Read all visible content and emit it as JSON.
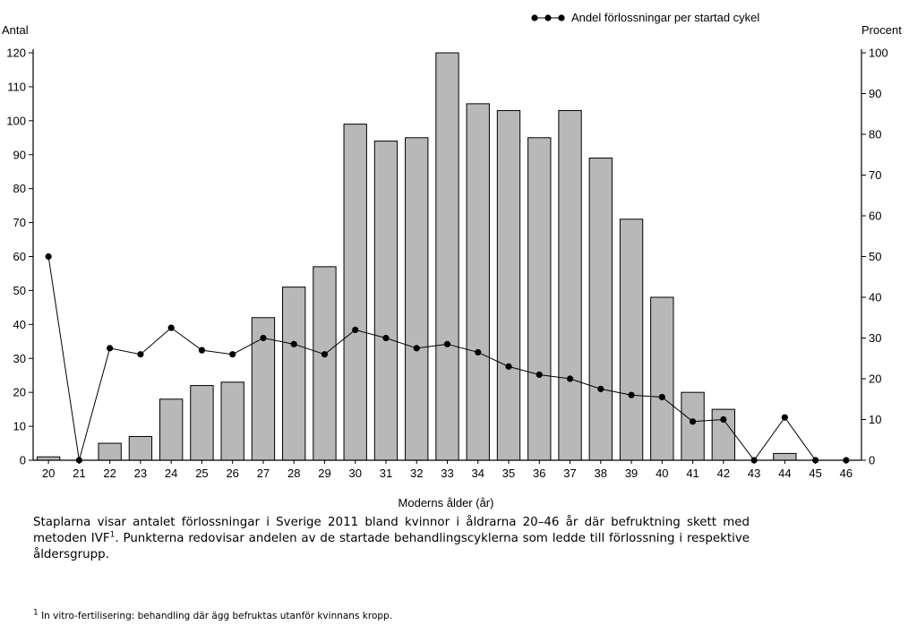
{
  "chart_data": {
    "type": "bar+line",
    "categories": [
      "20",
      "21",
      "22",
      "23",
      "24",
      "25",
      "26",
      "27",
      "28",
      "29",
      "30",
      "31",
      "32",
      "33",
      "34",
      "35",
      "36",
      "37",
      "38",
      "39",
      "40",
      "41",
      "42",
      "43",
      "44",
      "45",
      "46"
    ],
    "series": [
      {
        "axis": "left",
        "type": "bar",
        "values": [
          1,
          0,
          5,
          7,
          18,
          22,
          23,
          42,
          51,
          57,
          99,
          94,
          95,
          120,
          105,
          103,
          95,
          103,
          89,
          71,
          48,
          20,
          15,
          0,
          2,
          0,
          0
        ]
      },
      {
        "name": "Andel förlossningar per startad cykel",
        "axis": "right",
        "type": "line",
        "values": [
          50,
          0,
          27.5,
          26,
          32.5,
          27,
          26,
          30,
          28.5,
          26,
          32,
          30,
          27.5,
          28.5,
          26.5,
          23,
          21,
          20,
          17.5,
          16,
          15.5,
          9.5,
          10,
          0,
          10.5,
          0,
          0
        ]
      }
    ],
    "ylabel": "Antal",
    "ylim": [
      0,
      120
    ],
    "yticks": [
      0,
      10,
      20,
      30,
      40,
      50,
      60,
      70,
      80,
      90,
      100,
      110,
      120
    ],
    "y2label": "Procent",
    "y2lim": [
      0,
      100
    ],
    "y2ticks": [
      0,
      10,
      20,
      30,
      40,
      50,
      60,
      70,
      80,
      90,
      100
    ],
    "xlabel": "Moderns ålder (år)",
    "legend": {
      "label": "Andel förlossningar per startad cykel",
      "placement": "top-right"
    },
    "grid": false,
    "colors": {
      "bar_fill": "#b8b8b8",
      "bar_stroke": "#000000",
      "line": "#000000"
    }
  },
  "caption": {
    "before_sup": "Staplarna visar antalet förlossningar i Sverige 2011 bland kvinnor i åldrarna 20–46 år där befruktning skett med metoden IVF",
    "sup": "1",
    "after_sup": ". Punkterna redovisar andelen av de startade behandlingscyklerna som ledde till förlossning i respektive åldersgrupp."
  },
  "footnote": {
    "sup": "1",
    "text": " In vitro-fertilisering: behandling där ägg befruktas utanför kvinnans kropp."
  }
}
